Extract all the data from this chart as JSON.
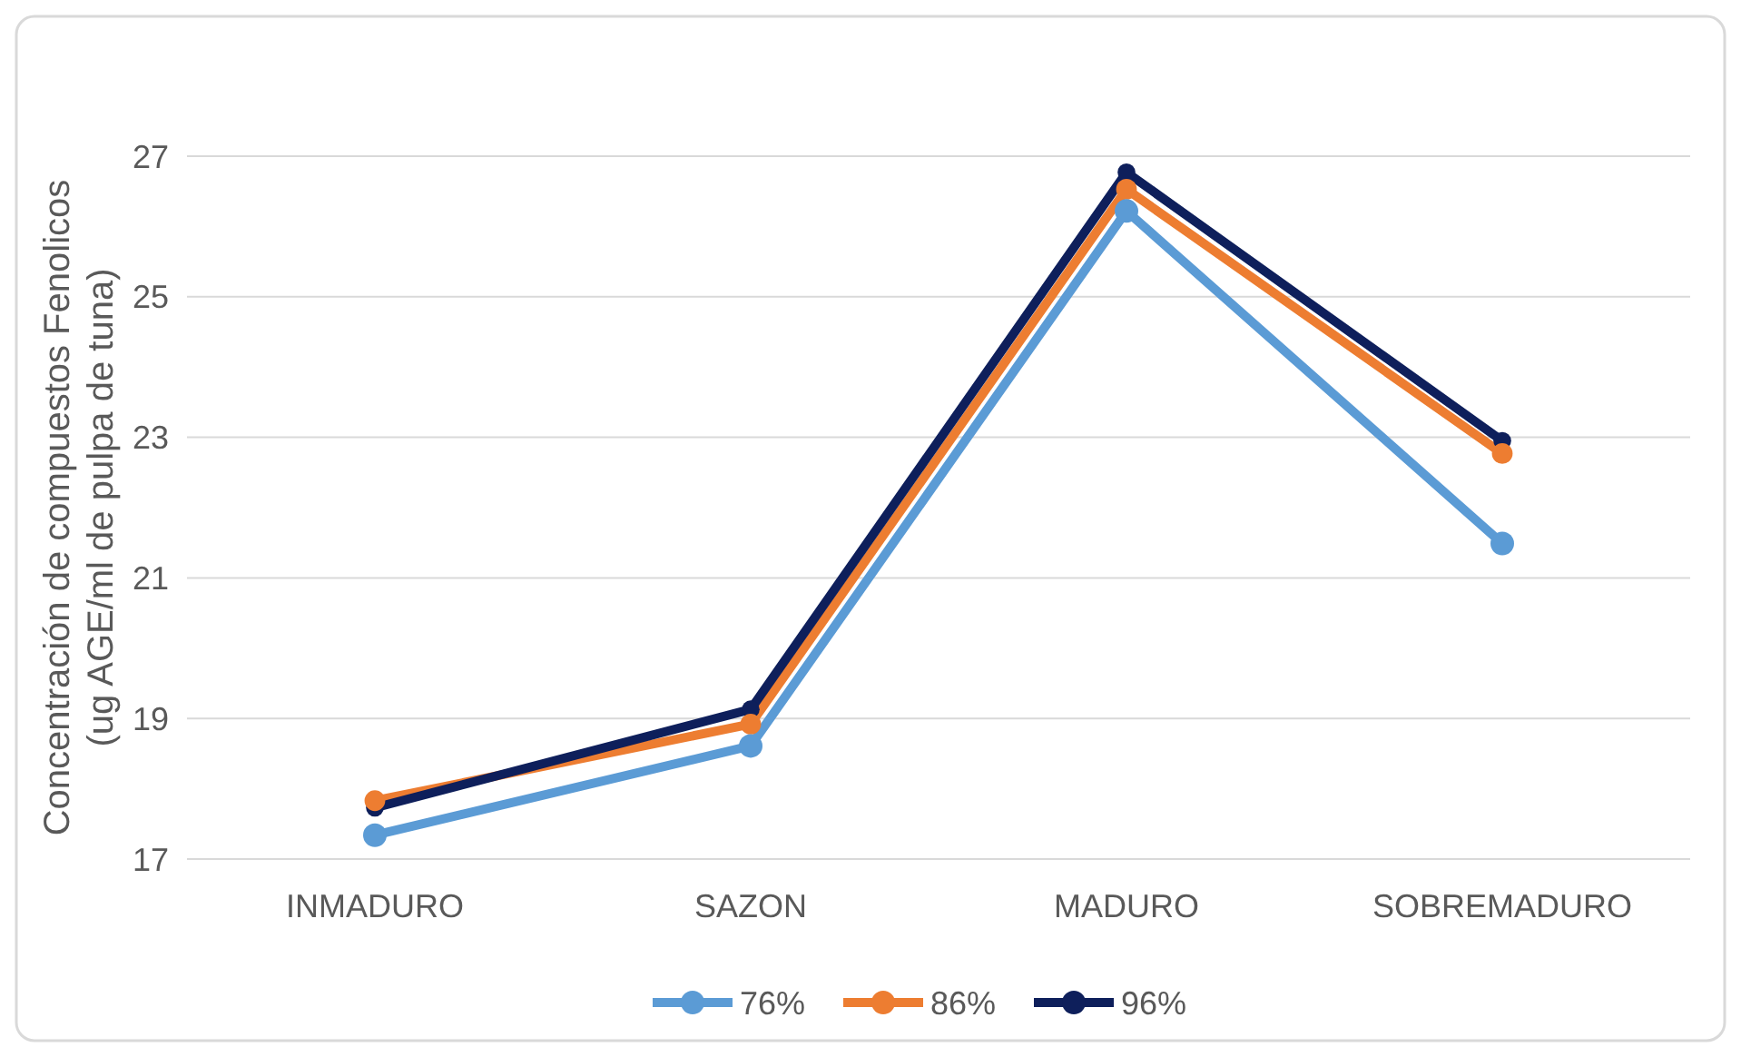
{
  "chart_data": {
    "type": "line",
    "ylabel": "Concentración de compuestos Fenolicos\n(ug AGE/ml de pulpa de tuna)",
    "categories": [
      "INMADURO",
      "SAZON",
      "MADURO",
      "SOBREMADURO"
    ],
    "series": [
      {
        "name": "76%",
        "color": "#5b9bd5",
        "values": [
          17.34,
          18.61,
          26.22,
          21.49
        ]
      },
      {
        "name": "86%",
        "color": "#ed7d31",
        "values": [
          17.83,
          18.92,
          26.53,
          22.77
        ]
      },
      {
        "name": "96%",
        "color": "#0e1f5b",
        "values": [
          17.73,
          19.13,
          26.77,
          22.95
        ]
      }
    ],
    "ylim": [
      17,
      27
    ],
    "yticks": [
      17,
      19,
      21,
      23,
      25,
      27
    ],
    "grid": "y",
    "legend": "bottom",
    "marker": "circle",
    "line_style": "solid"
  }
}
